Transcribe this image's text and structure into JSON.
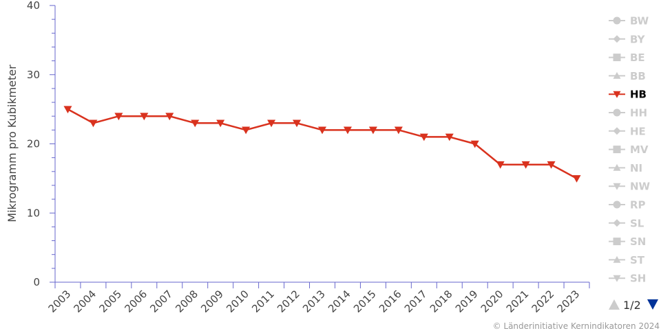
{
  "chart_data": {
    "type": "line",
    "title": "",
    "xlabel": "",
    "ylabel": "Mikrogramm pro Kubikmeter",
    "ylim": [
      0,
      40
    ],
    "yticks": [
      0,
      10,
      20,
      30,
      40
    ],
    "grid": false,
    "legend_position": "right",
    "x": [
      "2003",
      "2004",
      "2005",
      "2006",
      "2007",
      "2008",
      "2009",
      "2010",
      "2011",
      "2012",
      "2013",
      "2014",
      "2015",
      "2016",
      "2017",
      "2018",
      "2019",
      "2020",
      "2021",
      "2022",
      "2023"
    ],
    "series": [
      {
        "name": "HB",
        "color": "#d9321e",
        "marker": "triangle-down",
        "values": [
          25,
          23,
          24,
          24,
          24,
          23,
          23,
          22,
          23,
          23,
          22,
          22,
          22,
          22,
          21,
          21,
          20,
          17,
          17,
          17,
          15
        ]
      }
    ]
  },
  "legend": {
    "items": [
      {
        "label": "BW",
        "marker": "circle",
        "active": false
      },
      {
        "label": "BY",
        "marker": "diamond",
        "active": false
      },
      {
        "label": "BE",
        "marker": "square",
        "active": false
      },
      {
        "label": "BB",
        "marker": "triangle-up",
        "active": false
      },
      {
        "label": "HB",
        "marker": "triangle-down",
        "active": true
      },
      {
        "label": "HH",
        "marker": "circle",
        "active": false
      },
      {
        "label": "HE",
        "marker": "diamond",
        "active": false
      },
      {
        "label": "MV",
        "marker": "square",
        "active": false
      },
      {
        "label": "NI",
        "marker": "triangle-up",
        "active": false
      },
      {
        "label": "NW",
        "marker": "triangle-down",
        "active": false
      },
      {
        "label": "RP",
        "marker": "circle",
        "active": false
      },
      {
        "label": "SL",
        "marker": "diamond",
        "active": false
      },
      {
        "label": "SN",
        "marker": "square",
        "active": false
      },
      {
        "label": "ST",
        "marker": "triangle-up",
        "active": false
      },
      {
        "label": "SH",
        "marker": "triangle-down",
        "active": false
      }
    ],
    "inactive_color": "#cccccc",
    "active_text_color": "#000000",
    "pager": {
      "text": "1/2",
      "up_color": "#cccccc",
      "down_color": "#003399"
    }
  },
  "colors": {
    "axis": "#6666cc",
    "line": "#d9321e"
  },
  "credit": "© Länderinitiative Kernindikatoren 2024"
}
